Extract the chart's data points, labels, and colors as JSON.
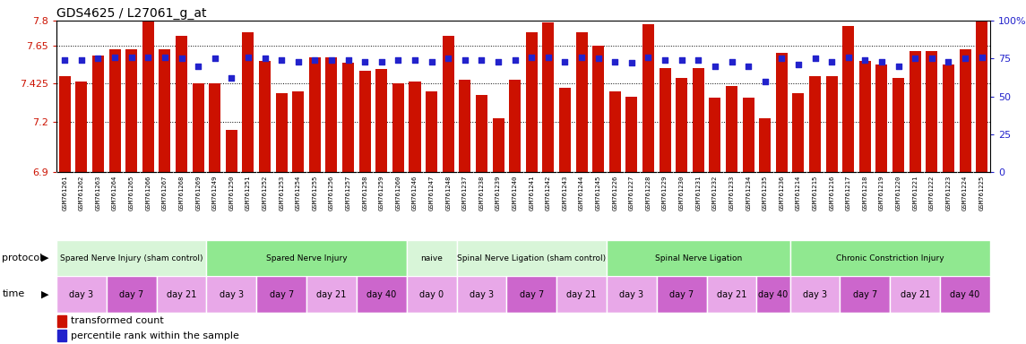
{
  "title": "GDS4625 / L27061_g_at",
  "ylim": [
    6.9,
    7.8
  ],
  "yticks": [
    6.9,
    7.2,
    7.425,
    7.65,
    7.8
  ],
  "ytick_labels": [
    "6.9",
    "7.2",
    "7.425",
    "7.65",
    "7.8"
  ],
  "right_yticks": [
    0,
    25,
    50,
    75,
    100
  ],
  "right_ytick_labels": [
    "0",
    "25",
    "50",
    "75",
    "100%"
  ],
  "samples": [
    "GSM761261",
    "GSM761262",
    "GSM761263",
    "GSM761264",
    "GSM761265",
    "GSM761266",
    "GSM761267",
    "GSM761268",
    "GSM761269",
    "GSM761249",
    "GSM761250",
    "GSM761251",
    "GSM761252",
    "GSM761253",
    "GSM761254",
    "GSM761255",
    "GSM761256",
    "GSM761257",
    "GSM761258",
    "GSM761259",
    "GSM761260",
    "GSM761246",
    "GSM761247",
    "GSM761248",
    "GSM761237",
    "GSM761238",
    "GSM761239",
    "GSM761240",
    "GSM761241",
    "GSM761242",
    "GSM761243",
    "GSM761244",
    "GSM761245",
    "GSM761226",
    "GSM761227",
    "GSM761228",
    "GSM761229",
    "GSM761230",
    "GSM761231",
    "GSM761232",
    "GSM761233",
    "GSM761234",
    "GSM761235",
    "GSM761236",
    "GSM761214",
    "GSM761215",
    "GSM761216",
    "GSM761217",
    "GSM761218",
    "GSM761219",
    "GSM761220",
    "GSM761221",
    "GSM761222",
    "GSM761223",
    "GSM761224",
    "GSM761225"
  ],
  "bar_values": [
    7.47,
    7.44,
    7.59,
    7.63,
    7.63,
    7.8,
    7.63,
    7.71,
    7.43,
    7.43,
    7.15,
    7.73,
    7.56,
    7.37,
    7.38,
    7.58,
    7.58,
    7.55,
    7.5,
    7.51,
    7.43,
    7.44,
    7.38,
    7.71,
    7.45,
    7.36,
    7.22,
    7.45,
    7.73,
    7.79,
    7.4,
    7.73,
    7.65,
    7.38,
    7.35,
    7.78,
    7.52,
    7.46,
    7.52,
    7.34,
    7.41,
    7.34,
    7.22,
    7.61,
    7.37,
    7.47,
    7.47,
    7.77,
    7.56,
    7.54,
    7.46,
    7.62,
    7.62,
    7.54,
    7.63,
    7.82
  ],
  "percentile_values": [
    74,
    74,
    75,
    76,
    76,
    76,
    76,
    75,
    70,
    75,
    62,
    76,
    75,
    74,
    73,
    74,
    74,
    74,
    73,
    73,
    74,
    74,
    73,
    75,
    74,
    74,
    73,
    74,
    76,
    76,
    73,
    76,
    75,
    73,
    72,
    76,
    74,
    74,
    74,
    70,
    73,
    70,
    60,
    75,
    71,
    75,
    73,
    76,
    74,
    73,
    70,
    75,
    75,
    73,
    75,
    76
  ],
  "protocol_groups": [
    {
      "label": "Spared Nerve Injury (sham control)",
      "start": 0,
      "end": 9,
      "color": "#d8f5d8"
    },
    {
      "label": "Spared Nerve Injury",
      "start": 9,
      "end": 21,
      "color": "#90e890"
    },
    {
      "label": "naive",
      "start": 21,
      "end": 24,
      "color": "#d8f5d8"
    },
    {
      "label": "Spinal Nerve Ligation (sham control)",
      "start": 24,
      "end": 33,
      "color": "#d8f5d8"
    },
    {
      "label": "Spinal Nerve Ligation",
      "start": 33,
      "end": 44,
      "color": "#90e890"
    },
    {
      "label": "Chronic Constriction Injury",
      "start": 44,
      "end": 56,
      "color": "#90e890"
    }
  ],
  "time_groups": [
    {
      "label": "day 3",
      "start": 0,
      "end": 3,
      "color": "#e8a8e8"
    },
    {
      "label": "day 7",
      "start": 3,
      "end": 6,
      "color": "#cc66cc"
    },
    {
      "label": "day 21",
      "start": 6,
      "end": 9,
      "color": "#e8a8e8"
    },
    {
      "label": "day 3",
      "start": 9,
      "end": 12,
      "color": "#e8a8e8"
    },
    {
      "label": "day 7",
      "start": 12,
      "end": 15,
      "color": "#cc66cc"
    },
    {
      "label": "day 21",
      "start": 15,
      "end": 18,
      "color": "#e8a8e8"
    },
    {
      "label": "day 40",
      "start": 18,
      "end": 21,
      "color": "#cc66cc"
    },
    {
      "label": "day 0",
      "start": 21,
      "end": 24,
      "color": "#e8a8e8"
    },
    {
      "label": "day 3",
      "start": 24,
      "end": 27,
      "color": "#e8a8e8"
    },
    {
      "label": "day 7",
      "start": 27,
      "end": 30,
      "color": "#cc66cc"
    },
    {
      "label": "day 21",
      "start": 30,
      "end": 33,
      "color": "#e8a8e8"
    },
    {
      "label": "day 3",
      "start": 33,
      "end": 36,
      "color": "#e8a8e8"
    },
    {
      "label": "day 7",
      "start": 36,
      "end": 39,
      "color": "#cc66cc"
    },
    {
      "label": "day 21",
      "start": 39,
      "end": 42,
      "color": "#e8a8e8"
    },
    {
      "label": "day 40",
      "start": 42,
      "end": 44,
      "color": "#cc66cc"
    },
    {
      "label": "day 3",
      "start": 44,
      "end": 47,
      "color": "#e8a8e8"
    },
    {
      "label": "day 7",
      "start": 47,
      "end": 50,
      "color": "#cc66cc"
    },
    {
      "label": "day 21",
      "start": 50,
      "end": 53,
      "color": "#e8a8e8"
    },
    {
      "label": "day 40",
      "start": 53,
      "end": 56,
      "color": "#cc66cc"
    }
  ],
  "bar_color": "#cc1100",
  "dot_color": "#2222cc",
  "bg_color": "#ffffff",
  "label_color_left": "#cc1100",
  "label_color_right": "#2222cc",
  "ybase": 6.9,
  "tick_bg_color": "#d8d8d8"
}
